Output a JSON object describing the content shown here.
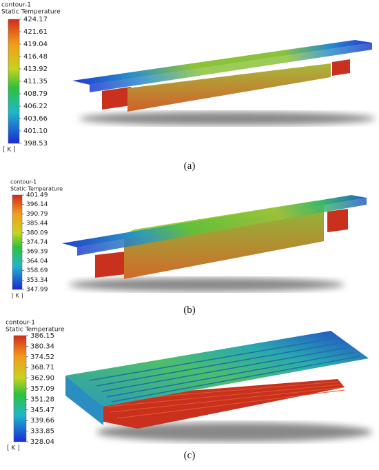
{
  "panels": [
    {
      "contour": "contour-1",
      "title": "Static Temperature",
      "unit": "[ K ]",
      "caption": "(a)",
      "ticks": [
        "424.17",
        "421.61",
        "419.04",
        "416.48",
        "413.92",
        "411.35",
        "408.79",
        "406.22",
        "403.66",
        "401.10",
        "398.53"
      ]
    },
    {
      "contour": "contour-1",
      "title": "Static Temperature",
      "unit": "[ K ]",
      "caption": "(b)",
      "ticks": [
        "401.49",
        "396.14",
        "390.79",
        "385.44",
        "380.09",
        "374.74",
        "369.39",
        "364.04",
        "358.69",
        "353.34",
        "347.99"
      ]
    },
    {
      "contour": "contour-1",
      "title": "Static Temperature",
      "unit": "[ K ]",
      "caption": "(c)",
      "ticks": [
        "386.15",
        "380.34",
        "374.52",
        "368.71",
        "362.90",
        "357.09",
        "351.28",
        "345.47",
        "339.66",
        "333.85",
        "328.04"
      ]
    }
  ]
}
